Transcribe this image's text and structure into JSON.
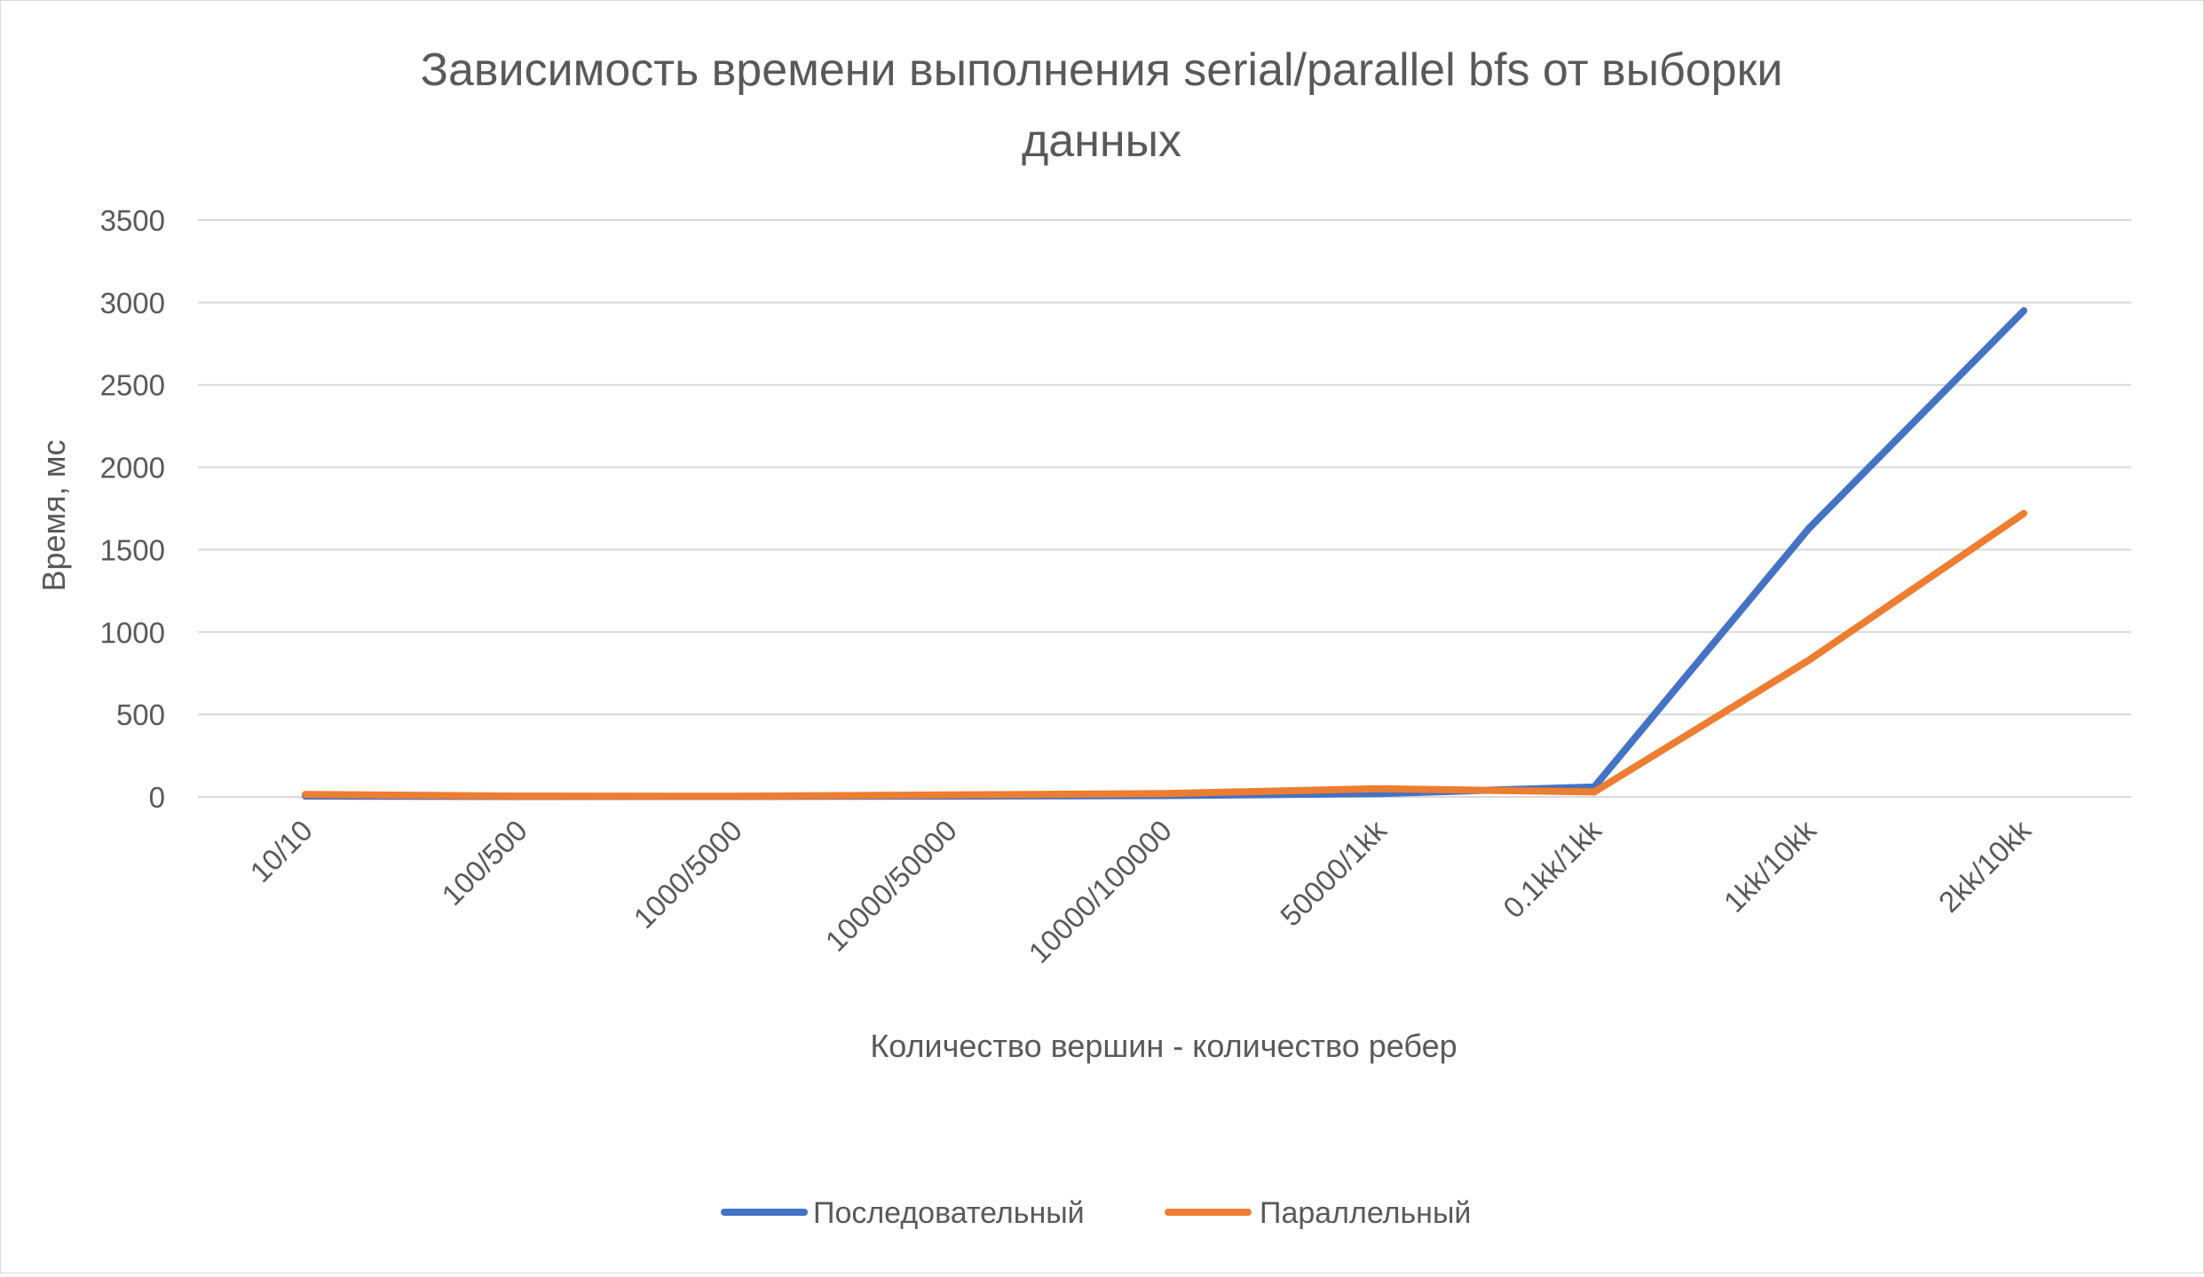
{
  "chart_data": {
    "type": "line",
    "title_line1": "Зависимость времени выполнения serial/parallel bfs от выборки",
    "title_line2": "данных",
    "xlabel": "Количество вершин - количество  ребер",
    "ylabel": "Время, мс",
    "categories": [
      "10/10",
      "100/500",
      "1000/5000",
      "10000/50000",
      "10000/100000",
      "50000/1kk",
      "0.1kk/1kk",
      "1kk/10kk",
      "2kk/10kk"
    ],
    "ylim": [
      0,
      3500
    ],
    "yticks": [
      0,
      500,
      1000,
      1500,
      2000,
      2500,
      3000,
      3500
    ],
    "grid": true,
    "legend_position": "bottom",
    "series": [
      {
        "name": "Последовательный",
        "color": "#4472c4",
        "values": [
          5,
          3,
          3,
          5,
          8,
          20,
          60,
          1630,
          2950
        ]
      },
      {
        "name": "Параллельный",
        "color": "#ed7d31",
        "values": [
          15,
          5,
          4,
          12,
          20,
          50,
          30,
          830,
          1720
        ]
      }
    ]
  }
}
